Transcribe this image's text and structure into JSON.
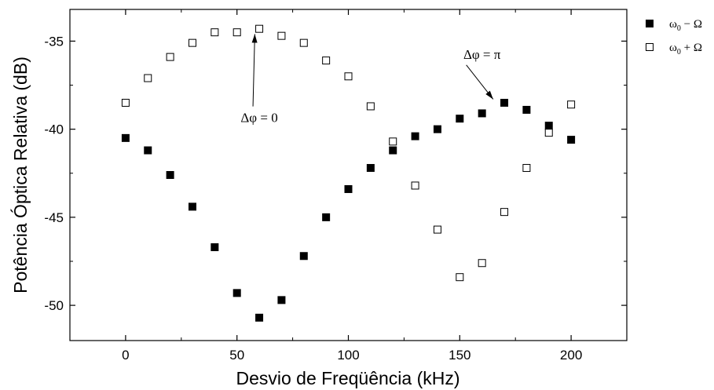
{
  "chart_data": {
    "type": "scatter",
    "xlabel": "Desvio de Freqüência (kHz)",
    "ylabel": "Potência Óptica Relativa (dB)",
    "xlim": [
      -25,
      225
    ],
    "ylim": [
      -52,
      -33.2
    ],
    "x_ticks": [
      0,
      50,
      100,
      150,
      200
    ],
    "y_ticks": [
      -35,
      -40,
      -45,
      -50
    ],
    "x_tick_labels": [
      "0",
      "50",
      "100",
      "150",
      "200"
    ],
    "y_tick_labels": [
      "-35",
      "-40",
      "-45",
      "-50"
    ],
    "grid": false,
    "legend_position": "outside-top-right",
    "series": [
      {
        "name": "ω0 − Ω",
        "legend_main": "ω",
        "legend_sub": "0",
        "legend_rest": " − Ω",
        "marker": "filled-square",
        "color": "#000000",
        "x": [
          0,
          10,
          20,
          30,
          40,
          50,
          60,
          70,
          80,
          90,
          100,
          110,
          120,
          130,
          140,
          150,
          160,
          170,
          180,
          190,
          200
        ],
        "y": [
          -40.5,
          -41.2,
          -42.6,
          -44.4,
          -46.7,
          -49.3,
          -50.7,
          -49.7,
          -47.2,
          -45.0,
          -43.4,
          -42.2,
          -41.2,
          -40.4,
          -40.0,
          -39.4,
          -39.1,
          -38.5,
          -38.9,
          -39.8,
          -40.6
        ]
      },
      {
        "name": "ω0 + Ω",
        "legend_main": "ω",
        "legend_sub": "0",
        "legend_rest": " + Ω",
        "marker": "open-square",
        "color": "#000000",
        "x": [
          0,
          10,
          20,
          30,
          40,
          50,
          60,
          70,
          80,
          90,
          100,
          110,
          120,
          130,
          140,
          150,
          160,
          170,
          180,
          190,
          200
        ],
        "y": [
          -38.5,
          -37.1,
          -35.9,
          -35.1,
          -34.5,
          -34.5,
          -34.3,
          -34.7,
          -35.1,
          -36.1,
          -37.0,
          -38.7,
          -40.7,
          -43.2,
          -45.7,
          -48.4,
          -47.6,
          -44.7,
          -42.2,
          -40.2,
          -38.6
        ]
      }
    ],
    "annotations": [
      {
        "text": "Δφ = 0",
        "x": 60,
        "y": -39.6,
        "arrow_to": [
          58,
          -34.6
        ]
      },
      {
        "text": "Δφ = π",
        "x": 160,
        "y": -36.0,
        "arrow_to": [
          165,
          -38.3
        ]
      }
    ]
  }
}
